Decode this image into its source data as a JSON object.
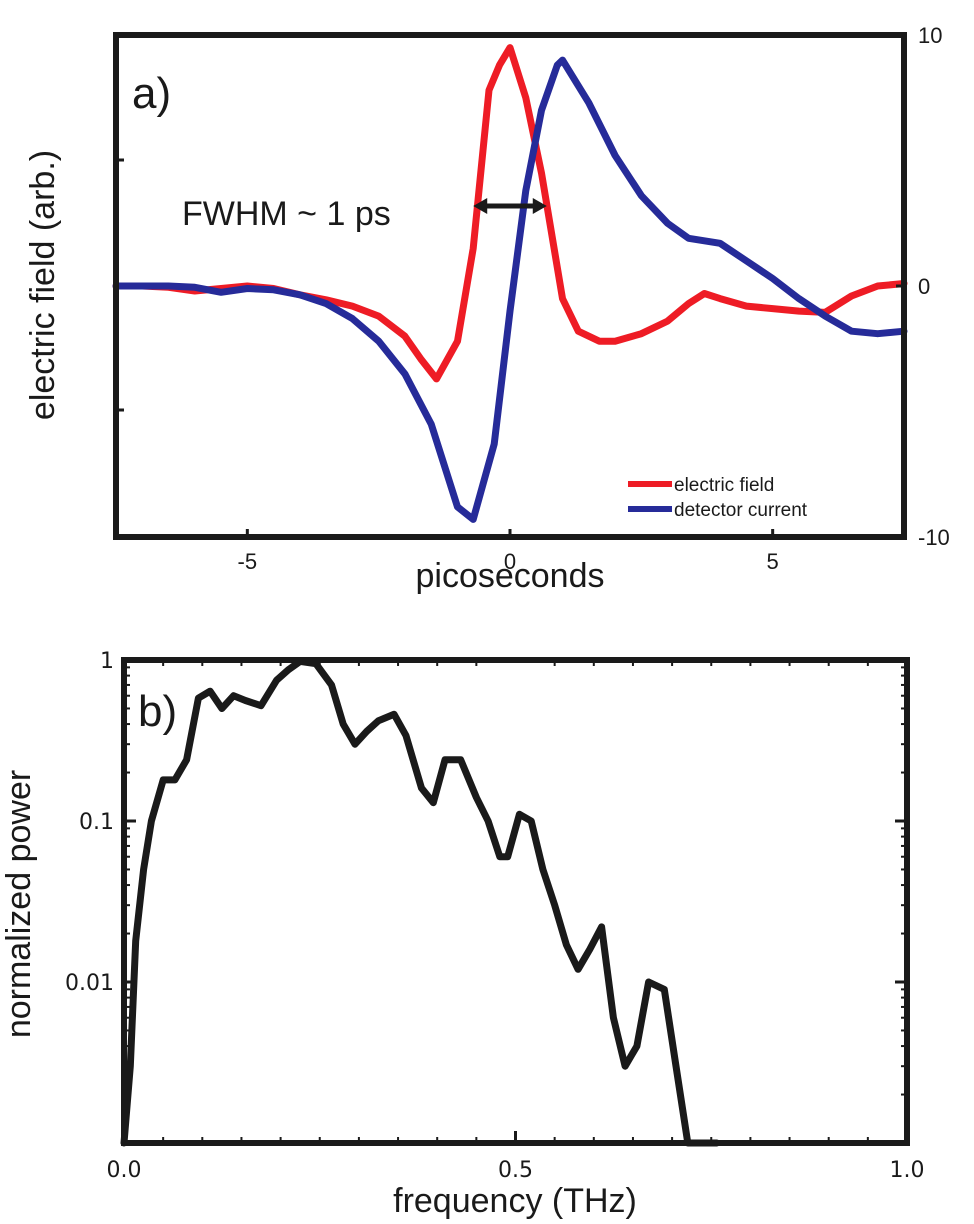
{
  "chart_data": [
    {
      "type": "line",
      "panel_label": "a)",
      "xlabel": "picoseconds",
      "ylabel_left": "electric field (arb.)",
      "xlim": [
        -7.5,
        7.5
      ],
      "ylim_right": [
        -10,
        10
      ],
      "x_ticks": [
        -5,
        0,
        5
      ],
      "x_tick_labels": [
        "-5",
        "0",
        "5"
      ],
      "y_right_ticks": [
        10,
        0,
        -10
      ],
      "y_right_tick_labels": [
        "10",
        "0",
        "-10"
      ],
      "grid": false,
      "legend_position": "bottom-right",
      "annotation": "FWHM ~ 1 ps",
      "fwhm_arrow": [
        -0.7,
        0.7
      ],
      "series": [
        {
          "name": "electric field",
          "color": "#ee1c25",
          "x": [
            -7.5,
            -7,
            -6.5,
            -6,
            -5.5,
            -5,
            -4.5,
            -4,
            -3.5,
            -3,
            -2.5,
            -2,
            -1.7,
            -1.4,
            -1.0,
            -0.7,
            -0.4,
            -0.2,
            0,
            0.3,
            0.6,
            0.8,
            1.0,
            1.3,
            1.7,
            2.0,
            2.5,
            3.0,
            3.4,
            3.7,
            4.0,
            4.5,
            5.0,
            5.5,
            6.0,
            6.5,
            7.0,
            7.5
          ],
          "y": [
            0.0,
            0.0,
            -0.05,
            -0.2,
            -0.1,
            0.0,
            -0.1,
            -0.35,
            -0.55,
            -0.8,
            -1.2,
            -2.0,
            -2.9,
            -3.7,
            -2.2,
            1.5,
            7.8,
            8.8,
            9.5,
            7.5,
            4.5,
            2.0,
            -0.5,
            -1.8,
            -2.2,
            -2.2,
            -1.9,
            -1.4,
            -0.7,
            -0.3,
            -0.5,
            -0.8,
            -0.9,
            -1.0,
            -1.05,
            -0.4,
            0.0,
            0.1
          ]
        },
        {
          "name": "detector current",
          "color": "#262b99",
          "x": [
            -7.5,
            -7,
            -6.5,
            -6,
            -5.5,
            -5,
            -4.5,
            -4,
            -3.5,
            -3,
            -2.5,
            -2,
            -1.5,
            -1.0,
            -0.7,
            -0.3,
            0,
            0.3,
            0.6,
            0.9,
            1.0,
            1.5,
            2.0,
            2.5,
            3.0,
            3.4,
            4.0,
            4.5,
            5.0,
            5.5,
            6.0,
            6.5,
            7.0,
            7.5
          ],
          "y": [
            0.0,
            0.0,
            0.0,
            -0.05,
            -0.25,
            -0.1,
            -0.15,
            -0.35,
            -0.7,
            -1.3,
            -2.2,
            -3.5,
            -5.5,
            -8.8,
            -9.3,
            -6.3,
            -1.0,
            3.8,
            7.0,
            8.8,
            9.0,
            7.3,
            5.2,
            3.6,
            2.5,
            1.9,
            1.7,
            1.0,
            0.3,
            -0.5,
            -1.2,
            -1.8,
            -1.9,
            -1.8
          ]
        }
      ]
    },
    {
      "type": "line",
      "panel_label": "b)",
      "xlabel": "frequency (THz)",
      "ylabel": "normalized power",
      "xlim": [
        0.0,
        1.0
      ],
      "ylim": [
        0.001,
        1
      ],
      "yscale": "log",
      "x_ticks": [
        0.0,
        0.5,
        1.0
      ],
      "x_tick_labels": [
        "0.0",
        "0.5",
        "1.0"
      ],
      "y_ticks": [
        1,
        0.1,
        0.01
      ],
      "y_tick_labels": [
        "1",
        "0.1",
        "0.01"
      ],
      "grid": false,
      "series": [
        {
          "color": "#1a1a1a",
          "x": [
            0.0,
            0.008,
            0.015,
            0.025,
            0.035,
            0.05,
            0.065,
            0.08,
            0.095,
            0.11,
            0.125,
            0.14,
            0.155,
            0.175,
            0.195,
            0.21,
            0.225,
            0.245,
            0.265,
            0.28,
            0.295,
            0.31,
            0.325,
            0.345,
            0.36,
            0.38,
            0.395,
            0.41,
            0.43,
            0.45,
            0.465,
            0.48,
            0.49,
            0.505,
            0.52,
            0.535,
            0.55,
            0.565,
            0.58,
            0.595,
            0.61,
            0.625,
            0.64,
            0.655,
            0.67,
            0.69,
            0.705,
            0.72,
            0.735,
            0.75,
            0.757
          ],
          "y": [
            0.001,
            0.003,
            0.018,
            0.05,
            0.1,
            0.18,
            0.18,
            0.24,
            0.58,
            0.64,
            0.5,
            0.6,
            0.56,
            0.52,
            0.75,
            0.87,
            0.98,
            0.95,
            0.7,
            0.4,
            0.3,
            0.36,
            0.42,
            0.46,
            0.34,
            0.16,
            0.13,
            0.24,
            0.24,
            0.14,
            0.1,
            0.06,
            0.06,
            0.11,
            0.1,
            0.05,
            0.03,
            0.017,
            0.012,
            0.016,
            0.022,
            0.006,
            0.003,
            0.004,
            0.01,
            0.009,
            0.003,
            0.001,
            0.001,
            0.001,
            0.001
          ]
        }
      ]
    }
  ]
}
